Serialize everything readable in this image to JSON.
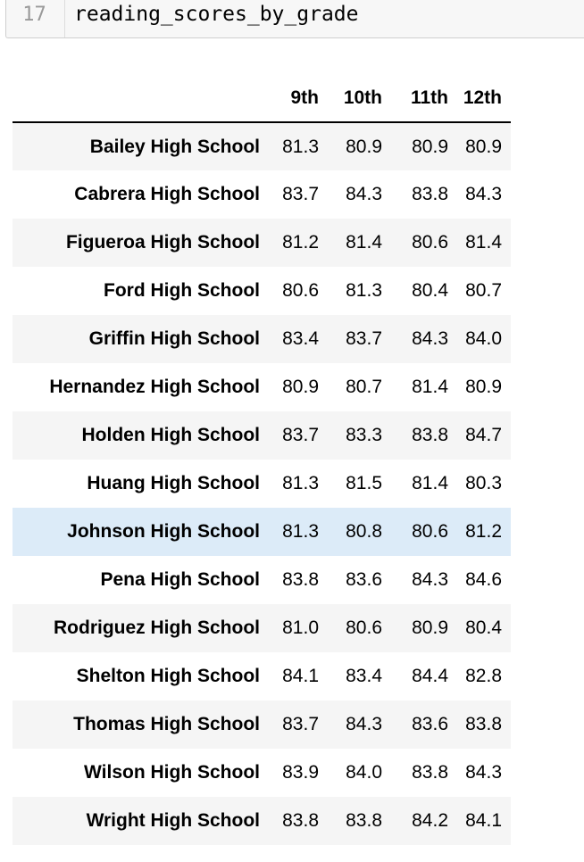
{
  "cell": {
    "line_number": "17",
    "code": "reading_scores_by_grade"
  },
  "table": {
    "columns": [
      "9th",
      "10th",
      "11th",
      "12th"
    ],
    "rows": [
      {
        "school": "Bailey High School",
        "values": [
          "81.3",
          "80.9",
          "80.9",
          "80.9"
        ]
      },
      {
        "school": "Cabrera High School",
        "values": [
          "83.7",
          "84.3",
          "83.8",
          "84.3"
        ]
      },
      {
        "school": "Figueroa High School",
        "values": [
          "81.2",
          "81.4",
          "80.6",
          "81.4"
        ]
      },
      {
        "school": "Ford High School",
        "values": [
          "80.6",
          "81.3",
          "80.4",
          "80.7"
        ]
      },
      {
        "school": "Griffin High School",
        "values": [
          "83.4",
          "83.7",
          "84.3",
          "84.0"
        ]
      },
      {
        "school": "Hernandez High School",
        "values": [
          "80.9",
          "80.7",
          "81.4",
          "80.9"
        ]
      },
      {
        "school": "Holden High School",
        "values": [
          "83.7",
          "83.3",
          "83.8",
          "84.7"
        ]
      },
      {
        "school": "Huang High School",
        "values": [
          "81.3",
          "81.5",
          "81.4",
          "80.3"
        ]
      },
      {
        "school": "Johnson High School",
        "values": [
          "81.3",
          "80.8",
          "80.6",
          "81.2"
        ]
      },
      {
        "school": "Pena High School",
        "values": [
          "83.8",
          "83.6",
          "84.3",
          "84.6"
        ]
      },
      {
        "school": "Rodriguez High School",
        "values": [
          "81.0",
          "80.6",
          "80.9",
          "80.4"
        ]
      },
      {
        "school": "Shelton High School",
        "values": [
          "84.1",
          "83.4",
          "84.4",
          "82.8"
        ]
      },
      {
        "school": "Thomas High School",
        "values": [
          "83.7",
          "84.3",
          "83.6",
          "83.8"
        ]
      },
      {
        "school": "Wilson High School",
        "values": [
          "83.9",
          "84.0",
          "83.8",
          "84.3"
        ]
      },
      {
        "school": "Wright High School",
        "values": [
          "83.8",
          "83.8",
          "84.2",
          "84.1"
        ]
      }
    ]
  }
}
